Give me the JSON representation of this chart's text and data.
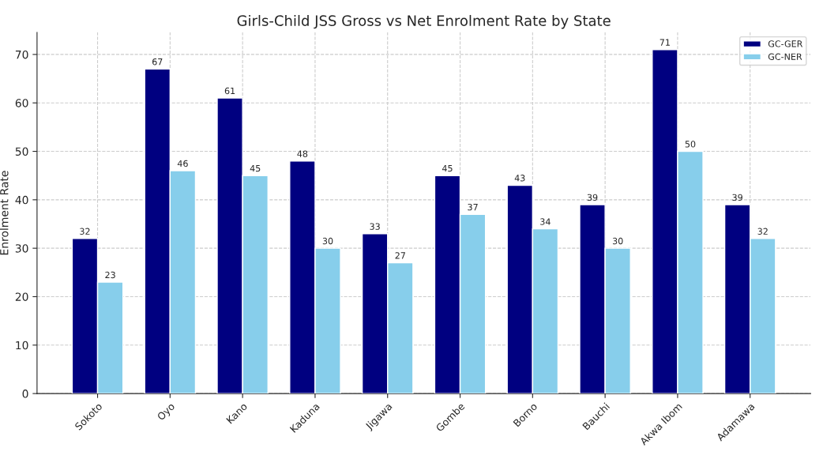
{
  "chart_data": {
    "type": "bar",
    "title": "Girls-Child JSS Gross vs Net Enrolment Rate by State",
    "ylabel": "Enrolment Rate",
    "categories": [
      "Sokoto",
      "Oyo",
      "Kano",
      "Kaduna",
      "Jigawa",
      "Gombe",
      "Borno",
      "Bauchi",
      "Akwa Ibom",
      "Adamawa"
    ],
    "series": [
      {
        "name": "GC-GER",
        "color": "#000080",
        "values": [
          32,
          67,
          61,
          48,
          33,
          45,
          43,
          39,
          71,
          39
        ]
      },
      {
        "name": "GC-NER",
        "color": "#87ceeb",
        "values": [
          23,
          46,
          45,
          30,
          27,
          37,
          34,
          30,
          50,
          32
        ]
      }
    ],
    "ylim": [
      0,
      74.55
    ],
    "yticks": [
      0,
      10,
      20,
      30,
      40,
      50,
      60,
      70
    ],
    "grid": true,
    "legend": "top right",
    "data_labels": true
  }
}
